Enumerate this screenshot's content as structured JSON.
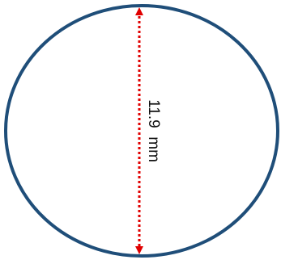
{
  "diagram": {
    "measurement": {
      "label": "11.9  mm",
      "value": 11.9,
      "unit": "mm",
      "kind": "diameter"
    },
    "colors": {
      "circle_stroke": "#1f4e79",
      "arrow": "#e00000",
      "label": "#111111",
      "background": "#ffffff"
    }
  }
}
